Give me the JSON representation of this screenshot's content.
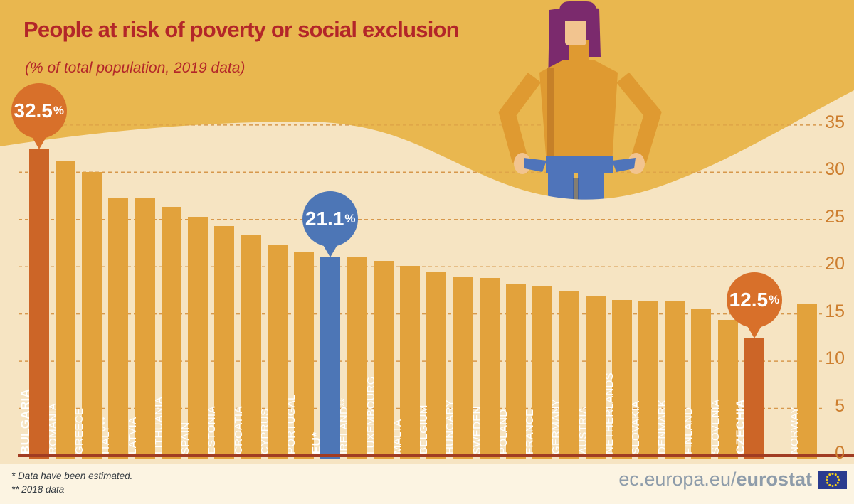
{
  "title": "People at risk of poverty or social exclusion",
  "subtitle": "(% of total population, 2019 data)",
  "chart_data": {
    "type": "bar",
    "unit": "%",
    "ylim": [
      0,
      35
    ],
    "yticks": [
      0,
      5,
      10,
      15,
      20,
      25,
      30,
      35
    ],
    "grid": "dashed-horizontal",
    "bars": [
      {
        "label": "BULGARIA",
        "value": 32.5,
        "style": "highlight",
        "bold": true
      },
      {
        "label": "ROMANIA",
        "value": 31.2,
        "style": "default"
      },
      {
        "label": "GREECE",
        "value": 30.0,
        "style": "default"
      },
      {
        "label": "ITALY**",
        "value": 27.3,
        "style": "default"
      },
      {
        "label": "LATVIA",
        "value": 27.3,
        "style": "default"
      },
      {
        "label": "LITHUANIA",
        "value": 26.3,
        "style": "default"
      },
      {
        "label": "SPAIN",
        "value": 25.3,
        "style": "default"
      },
      {
        "label": "ESTONIA",
        "value": 24.3,
        "style": "default"
      },
      {
        "label": "CROATIA",
        "value": 23.3,
        "style": "default"
      },
      {
        "label": "CYPRUS",
        "value": 22.3,
        "style": "default"
      },
      {
        "label": "PORTUGAL",
        "value": 21.6,
        "style": "default"
      },
      {
        "label": "EU*",
        "value": 21.1,
        "style": "eu",
        "bold": true
      },
      {
        "label": "IRELAND**",
        "value": 21.1,
        "style": "default"
      },
      {
        "label": "LUXEMBOURG",
        "value": 20.6,
        "style": "default"
      },
      {
        "label": "MALTA",
        "value": 20.1,
        "style": "default"
      },
      {
        "label": "BELGIUM",
        "value": 19.5,
        "style": "default"
      },
      {
        "label": "HUNGARY",
        "value": 18.9,
        "style": "default"
      },
      {
        "label": "SWEDEN",
        "value": 18.8,
        "style": "default"
      },
      {
        "label": "POLAND",
        "value": 18.2,
        "style": "default"
      },
      {
        "label": "FRANCE",
        "value": 17.9,
        "style": "default"
      },
      {
        "label": "GERMANY",
        "value": 17.4,
        "style": "default"
      },
      {
        "label": "AUSTRIA",
        "value": 16.9,
        "style": "default"
      },
      {
        "label": "NETHERLANDS",
        "value": 16.5,
        "style": "default"
      },
      {
        "label": "SLOVAKIA",
        "value": 16.4,
        "style": "default"
      },
      {
        "label": "DENMARK",
        "value": 16.3,
        "style": "default"
      },
      {
        "label": "FINLAND",
        "value": 15.6,
        "style": "default"
      },
      {
        "label": "SLOVENIA",
        "value": 14.4,
        "style": "default"
      },
      {
        "label": "CZECHIA",
        "value": 12.5,
        "style": "highlight",
        "bold": true
      },
      {
        "label": "NORWAY",
        "value": 16.1,
        "style": "default",
        "separated": true
      }
    ],
    "callouts": [
      {
        "target": "BULGARIA",
        "text": "32.5",
        "suffix": "%",
        "color_key": "badge_orange"
      },
      {
        "target": "EU*",
        "text": "21.1",
        "suffix": "%",
        "color_key": "badge_blue"
      },
      {
        "target": "CZECHIA",
        "text": "12.5",
        "suffix": "%",
        "color_key": "badge_orange"
      }
    ]
  },
  "footnotes": [
    "* Data have been estimated.",
    "** 2018 data"
  ],
  "footer": {
    "url_regular": "ec.europa.eu/",
    "url_bold": "eurostat"
  },
  "palette": {
    "bg_top": "#e9b74f",
    "plot_bg": "#f6e4c2",
    "footer_bg": "#fcf4e2",
    "bar": "#e2a23c",
    "bar_highlight": "#cc6527",
    "bar_eu": "#4d76b6",
    "badge_orange": "#d8702a",
    "badge_blue": "#4d76b6",
    "title_red": "#b32629",
    "axis_orange": "#cd7e2e",
    "grid_line": "#d49040",
    "baseline": "#a13c22",
    "footnote_text": "#333a40",
    "eurostat_gray": "#8e9caa",
    "flag_blue": "#2a3b8f",
    "star_yellow": "#f7d117",
    "skin": "#f2c48f",
    "hair": "#7b2a6d",
    "sweater": "#df9a31",
    "jeans": "#4f74ba",
    "jeans_dark": "#31508f"
  }
}
